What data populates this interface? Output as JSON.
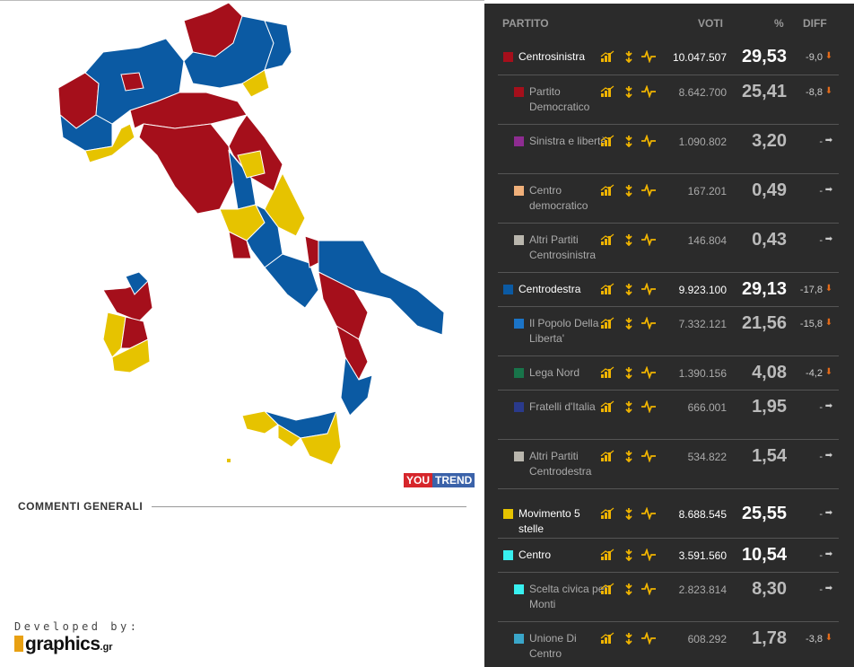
{
  "header": {
    "partito": "PARTITO",
    "voti": "VOTI",
    "pct": "%",
    "diff": "DIFF"
  },
  "colors": {
    "red": "#a50f1b",
    "blue": "#0b5aa3",
    "yellow": "#e6c300",
    "down": "#e36b1a",
    "right": "#cccccc"
  },
  "rows": [
    {
      "name": "Centrosinistra",
      "votes": "10.047.507",
      "pct": "29,53",
      "diff": "-9,0",
      "trend": "down",
      "main": true,
      "color": "#a50f1b"
    },
    {
      "name": "Partito Democratico",
      "votes": "8.642.700",
      "pct": "25,41",
      "diff": "-8,8",
      "trend": "down",
      "main": false,
      "color": "#a50f1b"
    },
    {
      "name": "Sinistra e libertà",
      "votes": "1.090.802",
      "pct": "3,20",
      "diff": "-",
      "trend": "right",
      "main": false,
      "color": "#8e2c91"
    },
    {
      "name": "Centro democratico",
      "votes": "167.201",
      "pct": "0,49",
      "diff": "-",
      "trend": "right",
      "main": false,
      "color": "#f0b07a"
    },
    {
      "name": "Altri Partiti Centrosinistra",
      "votes": "146.804",
      "pct": "0,43",
      "diff": "-",
      "trend": "right",
      "main": false,
      "color": "#b9b6ad"
    },
    {
      "name": "Centrodestra",
      "votes": "9.923.100",
      "pct": "29,13",
      "diff": "-17,8",
      "trend": "down",
      "main": true,
      "color": "#0b5aa3"
    },
    {
      "name": "Il Popolo Della Liberta'",
      "votes": "7.332.121",
      "pct": "21,56",
      "diff": "-15,8",
      "trend": "down",
      "main": false,
      "color": "#1b74c7"
    },
    {
      "name": "Lega Nord",
      "votes": "1.390.156",
      "pct": "4,08",
      "diff": "-4,2",
      "trend": "down",
      "main": false,
      "color": "#18744a"
    },
    {
      "name": "Fratelli d'Italia",
      "votes": "666.001",
      "pct": "1,95",
      "diff": "-",
      "trend": "right",
      "main": false,
      "color": "#2a3a8c"
    },
    {
      "name": "Altri Partiti Centrodestra",
      "votes": "534.822",
      "pct": "1,54",
      "diff": "-",
      "trend": "right",
      "main": false,
      "color": "#b9b6ad"
    },
    {
      "name": "Movimento 5 stelle",
      "votes": "8.688.545",
      "pct": "25,55",
      "diff": "-",
      "trend": "right",
      "main": true,
      "color": "#e6c300"
    },
    {
      "name": "Centro",
      "votes": "3.591.560",
      "pct": "10,54",
      "diff": "-",
      "trend": "right",
      "main": true,
      "color": "#38f0f0"
    },
    {
      "name": "Scelta civica per Monti",
      "votes": "2.823.814",
      "pct": "8,30",
      "diff": "-",
      "trend": "right",
      "main": false,
      "color": "#38f0f0"
    },
    {
      "name": "Unione Di Centro",
      "votes": "608.292",
      "pct": "1,78",
      "diff": "-3,8",
      "trend": "down",
      "main": false,
      "color": "#3aa6c9"
    }
  ],
  "comments_title": "COMMENTI GENERALI",
  "youtrend": {
    "you": "YOU",
    "trend": "TREND"
  },
  "developed_by": "Developed by:",
  "brand": {
    "name": "graphics",
    "suffix": ".gr",
    "info": "info"
  }
}
